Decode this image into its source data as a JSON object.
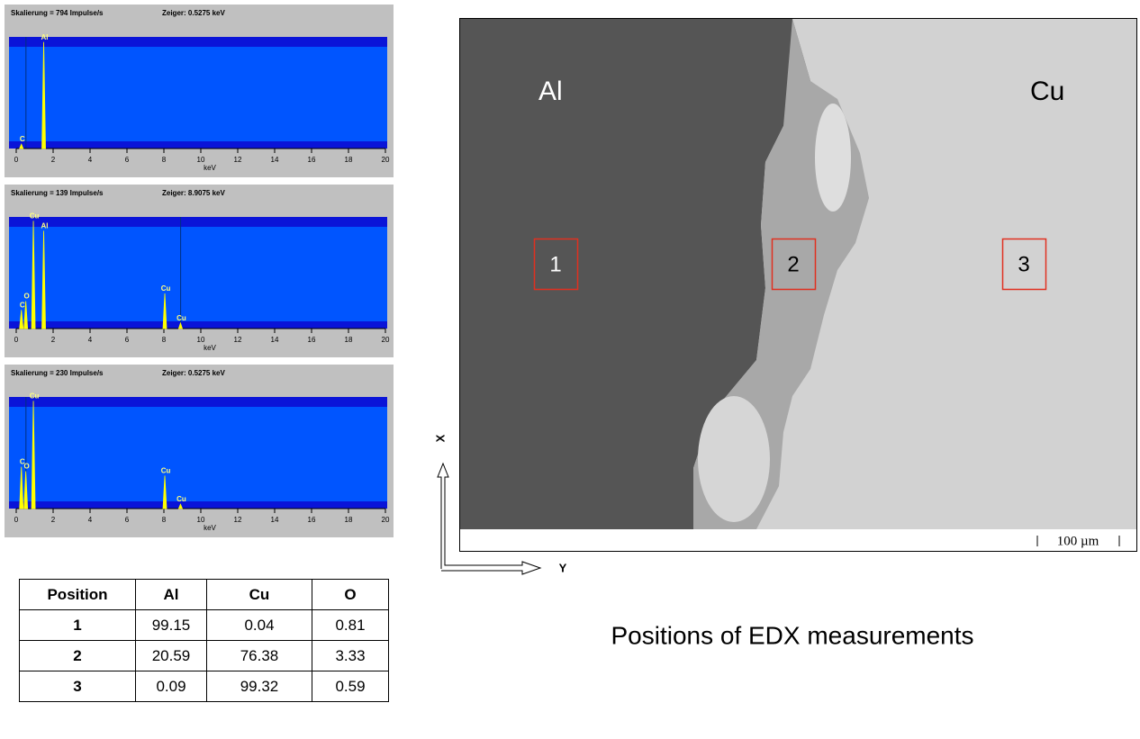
{
  "chart_data": [
    {
      "type": "spectrum",
      "scale_text": "Skalierung = 794  Impulse/s",
      "cursor_text": "Zeiger:  0.5275 keV",
      "xlabel": "keV",
      "xlim": [
        0,
        20
      ],
      "xticks": [
        0,
        2,
        4,
        6,
        8,
        10,
        12,
        14,
        16,
        18,
        20
      ],
      "ylim": [
        0,
        100
      ],
      "cursor": 0.5275,
      "color": "#ffff00",
      "peaks": {
        "x": [
          0.28,
          1.49
        ],
        "values": [
          4,
          97
        ],
        "labels": [
          "C",
          "Al"
        ]
      }
    },
    {
      "type": "spectrum",
      "scale_text": "Skalierung = 139  Impulse/s",
      "cursor_text": "Zeiger:  8.9075 keV",
      "xlabel": "keV",
      "xlim": [
        0,
        20
      ],
      "xticks": [
        0,
        2,
        4,
        6,
        8,
        10,
        12,
        14,
        16,
        18,
        20
      ],
      "ylim": [
        0,
        100
      ],
      "cursor": 8.9075,
      "color": "#ffff00",
      "peaks": {
        "x": [
          0.28,
          0.52,
          0.93,
          1.49,
          8.05,
          8.9
        ],
        "values": [
          17,
          25,
          98,
          89,
          32,
          5
        ],
        "labels": [
          "C",
          "O",
          "Cu",
          "Al",
          "Cu",
          "Cu"
        ]
      }
    },
    {
      "type": "spectrum",
      "scale_text": "Skalierung = 230  Impulse/s",
      "cursor_text": "Zeiger:  0.5275 keV",
      "xlabel": "keV",
      "xlim": [
        0,
        20
      ],
      "xticks": [
        0,
        2,
        4,
        6,
        8,
        10,
        12,
        14,
        16,
        18,
        20
      ],
      "ylim": [
        0,
        100
      ],
      "cursor": 0.5275,
      "color": "#ffff00",
      "peaks": {
        "x": [
          0.28,
          0.52,
          0.93,
          8.05,
          8.9
        ],
        "values": [
          38,
          34,
          98,
          30,
          4
        ],
        "labels": [
          "C",
          "O",
          "Cu",
          "Cu",
          "Cu"
        ]
      }
    }
  ],
  "image": {
    "left_label": "Al",
    "right_label": "Cu",
    "positions": [
      "1",
      "2",
      "3"
    ],
    "scale_bar": "100 µm",
    "axis_x": "X",
    "axis_y": "Y"
  },
  "caption": "Positions of EDX measurements",
  "table": {
    "header": [
      "Position",
      "Al",
      "Cu",
      "O"
    ],
    "rows": [
      [
        "1",
        "99.15",
        "0.04",
        "0.81"
      ],
      [
        "2",
        "20.59",
        "76.38",
        "3.33"
      ],
      [
        "3",
        "0.09",
        "99.32",
        "0.59"
      ]
    ]
  }
}
